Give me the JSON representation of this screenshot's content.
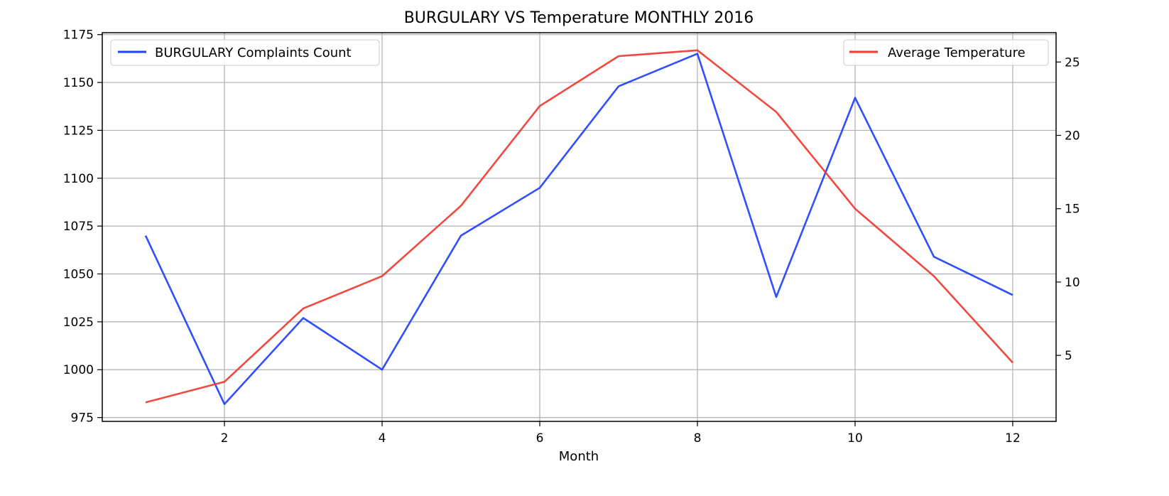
{
  "chart_data": {
    "type": "line",
    "title": "BURGULARY VS Temperature MONTHLY 2016",
    "xlabel": "Month",
    "ylabel": "",
    "y2label": "",
    "x": [
      1,
      2,
      3,
      4,
      5,
      6,
      7,
      8,
      9,
      10,
      11,
      12
    ],
    "xlim": [
      0.45,
      12.55
    ],
    "xticks": [
      2,
      4,
      6,
      8,
      10,
      12
    ],
    "ylim": [
      973,
      1176
    ],
    "yticks": [
      975,
      1000,
      1025,
      1050,
      1075,
      1100,
      1125,
      1150,
      1175
    ],
    "y2lim": [
      0.5,
      27
    ],
    "y2ticks": [
      5,
      10,
      15,
      20,
      25
    ],
    "grid": true,
    "series": [
      {
        "name": "BURGULARY Complaints Count",
        "axis": "left",
        "color": "#1f3fff",
        "values": [
          1070,
          982,
          1027,
          1000,
          1070,
          1095,
          1148,
          1165,
          1038,
          1142,
          1059,
          1039
        ]
      },
      {
        "name": "Average Temperature",
        "axis": "right",
        "color": "#ef3b30",
        "values": [
          1.8,
          3.2,
          8.2,
          10.4,
          15.2,
          22.0,
          25.4,
          25.8,
          21.6,
          15.0,
          10.4,
          4.5
        ]
      }
    ],
    "legends": [
      {
        "placement": "upper-left",
        "series": 0
      },
      {
        "placement": "upper-right",
        "series": 1
      }
    ]
  }
}
